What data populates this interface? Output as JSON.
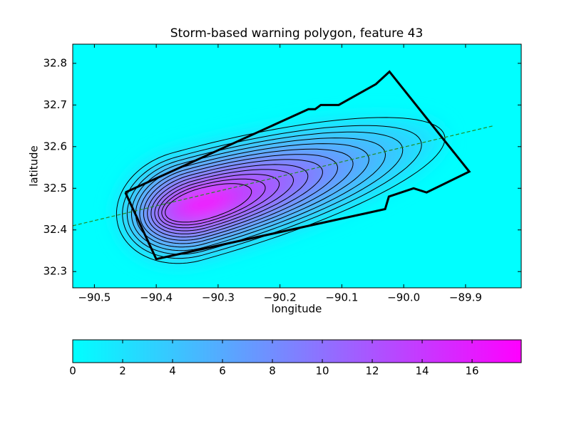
{
  "chart_data": {
    "type": "contour",
    "title": "Storm-based warning polygon, feature 43",
    "x_label": "longitude",
    "y_label": "latitude",
    "xlim": [
      -90.535,
      -89.81
    ],
    "ylim": [
      32.261,
      32.846
    ],
    "xticks": [
      {
        "value": -90.5,
        "label": "−90.5"
      },
      {
        "value": -90.4,
        "label": "−90.4"
      },
      {
        "value": -90.3,
        "label": "−90.3"
      },
      {
        "value": -90.2,
        "label": "−90.2"
      },
      {
        "value": -90.1,
        "label": "−90.1"
      },
      {
        "value": -90.0,
        "label": "−90.0"
      },
      {
        "value": -89.9,
        "label": "−89.9"
      }
    ],
    "yticks": [
      32.3,
      32.4,
      32.5,
      32.6,
      32.7,
      32.8
    ],
    "levels": [
      2,
      3,
      4,
      5,
      6,
      7,
      8,
      9,
      10,
      11,
      12,
      13,
      14
    ],
    "contour_color": "#000000",
    "colormap": [
      "#00ffff",
      "#ff00ff"
    ],
    "polygon": {
      "color": "#000000",
      "x": [
        -90.45,
        -90.4,
        -90.03,
        -90.024,
        -89.984,
        -89.963,
        -89.894,
        -90.023,
        -90.045,
        -90.105,
        -90.134,
        -90.143,
        -90.154,
        -90.45
      ],
      "y": [
        32.49,
        32.33,
        32.45,
        32.48,
        32.5,
        32.49,
        32.54,
        32.78,
        32.75,
        32.7,
        32.7,
        32.69,
        32.69,
        32.49
      ]
    },
    "track": {
      "color": "#228b22",
      "x": [
        -90.535,
        -89.855
      ],
      "y": [
        32.41,
        32.65
      ]
    },
    "colorbar": {
      "lim": [
        0,
        17.97
      ],
      "ticks": [
        0,
        2,
        4,
        6,
        8,
        10,
        12,
        14,
        16
      ]
    }
  }
}
